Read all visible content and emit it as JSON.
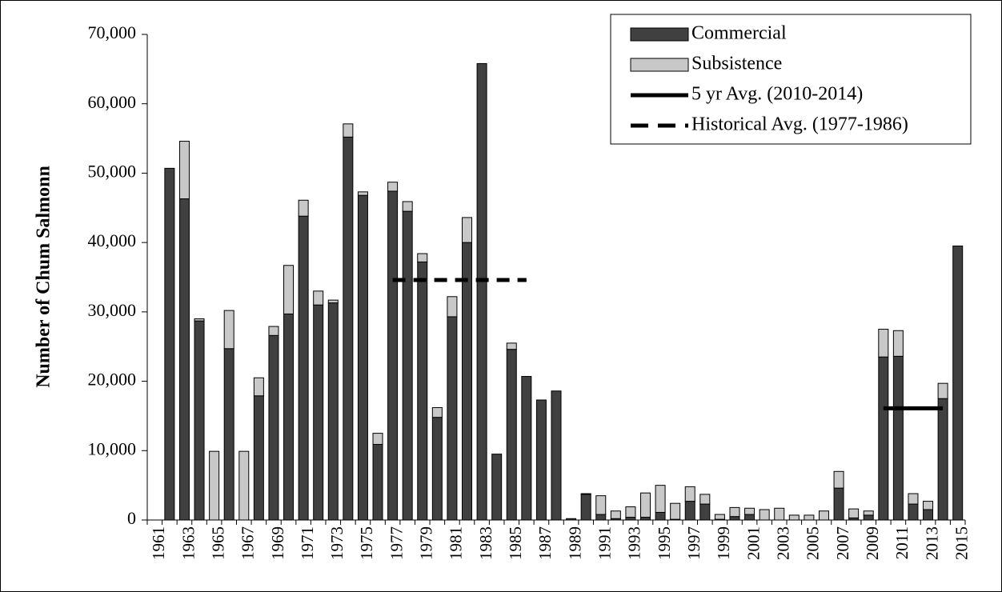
{
  "chart_data": {
    "type": "bar",
    "stacked": true,
    "y_label": "Number of Chum Salmonn",
    "categories": [
      "1961",
      null,
      "1963",
      null,
      "1965",
      null,
      "1967",
      null,
      "1969",
      null,
      "1971",
      null,
      "1973",
      null,
      "1975",
      null,
      "1977",
      null,
      "1979",
      null,
      "1981",
      null,
      "1983",
      null,
      "1985",
      null,
      "1987",
      null,
      "1989",
      null,
      "1991",
      null,
      "1993",
      null,
      "1995",
      null,
      "1997",
      null,
      "1999",
      null,
      "2001",
      null,
      "2003",
      null,
      "2005",
      null,
      "2007",
      null,
      "2009",
      null,
      "2011",
      null,
      "2013",
      null,
      "2015"
    ],
    "series": [
      {
        "name": "Commercial",
        "type": "bar",
        "color": "#404040",
        "values": [
          0,
          50700,
          46300,
          28700,
          0,
          24700,
          0,
          17900,
          26600,
          29700,
          43800,
          31000,
          31300,
          55200,
          46800,
          10900,
          47400,
          44500,
          37200,
          14800,
          29300,
          40000,
          65800,
          9500,
          24600,
          20700,
          17300,
          18600,
          200,
          3700,
          800,
          200,
          400,
          400,
          1100,
          100,
          2700,
          2300,
          100,
          500,
          800,
          0,
          0,
          0,
          0,
          0,
          4600,
          300,
          700,
          23500,
          23600,
          2300,
          1500,
          17500,
          39500
        ]
      },
      {
        "name": "Subsistence",
        "type": "bar",
        "color": "#c8c8c8",
        "values": [
          0,
          0,
          8300,
          300,
          9900,
          5500,
          9900,
          2600,
          1300,
          7000,
          2300,
          2000,
          400,
          1900,
          500,
          1600,
          1300,
          1400,
          1200,
          1400,
          2900,
          3600,
          0,
          0,
          900,
          0,
          0,
          0,
          0,
          100,
          2700,
          1100,
          1500,
          3500,
          3900,
          2300,
          2100,
          1400,
          700,
          1300,
          900,
          1500,
          1700,
          700,
          700,
          1300,
          2400,
          1300,
          600,
          4000,
          3700,
          1500,
          1200,
          2200,
          0
        ]
      },
      {
        "name": "5 yr Avg. (2010-2014)",
        "type": "line",
        "dash": "solid",
        "color": "#000000",
        "values": [
          null,
          null,
          null,
          null,
          null,
          null,
          null,
          null,
          null,
          null,
          null,
          null,
          null,
          null,
          null,
          null,
          null,
          null,
          null,
          null,
          null,
          null,
          null,
          null,
          null,
          null,
          null,
          null,
          null,
          null,
          null,
          null,
          null,
          null,
          null,
          null,
          null,
          null,
          null,
          null,
          null,
          null,
          null,
          null,
          null,
          null,
          null,
          null,
          null,
          16100,
          16100,
          16100,
          16100,
          16100,
          null
        ]
      },
      {
        "name": "Historical Avg. (1977-1986)",
        "type": "line",
        "dash": "dashed",
        "color": "#000000",
        "values": [
          null,
          null,
          null,
          null,
          null,
          null,
          null,
          null,
          null,
          null,
          null,
          null,
          null,
          null,
          null,
          null,
          34600,
          34600,
          34600,
          34600,
          34600,
          34600,
          34600,
          34600,
          34600,
          34600,
          null,
          null,
          null,
          null,
          null,
          null,
          null,
          null,
          null,
          null,
          null,
          null,
          null,
          null,
          null,
          null,
          null,
          null,
          null,
          null,
          null,
          null,
          null,
          null,
          null,
          null,
          null,
          null,
          null
        ]
      }
    ],
    "ylim": [
      0,
      70000
    ],
    "yticks": [
      0,
      {
        "value": 10000,
        "label": "10,000"
      },
      {
        "value": 20000,
        "label": "20,000"
      },
      {
        "value": 30000,
        "label": "30,000"
      },
      {
        "value": 40000,
        "label": "40,000"
      },
      {
        "value": 50000,
        "label": "50,000"
      },
      {
        "value": 60000,
        "label": "60,000"
      },
      {
        "value": 70000,
        "label": "70,000"
      }
    ],
    "legend": "top-right"
  }
}
